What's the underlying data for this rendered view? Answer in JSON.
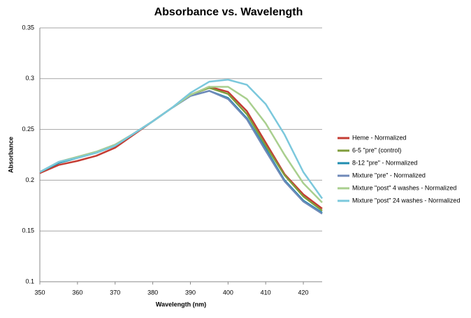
{
  "chart_data": {
    "type": "line",
    "title": "Absorbance vs. Wavelength",
    "x_label": "Wavelength (nm)",
    "y_label": "Absorbance",
    "x": [
      350,
      355,
      360,
      365,
      370,
      375,
      380,
      385,
      390,
      395,
      400,
      405,
      410,
      415,
      420,
      425
    ],
    "series": [
      {
        "name": "Heme - Normalized",
        "color": "#c43c33",
        "values": [
          0.207,
          0.215,
          0.219,
          0.224,
          0.232,
          0.245,
          0.258,
          0.271,
          0.284,
          0.292,
          0.287,
          0.268,
          0.237,
          0.206,
          0.186,
          0.172
        ]
      },
      {
        "name": "6-5 \"pre\" (control)",
        "color": "#7f9c3b",
        "values": [
          0.208,
          0.217,
          0.222,
          0.227,
          0.234,
          0.246,
          0.258,
          0.271,
          0.284,
          0.291,
          0.285,
          0.265,
          0.234,
          0.205,
          0.184,
          0.17
        ]
      },
      {
        "name": "8-12 \"pre\" - Normalized",
        "color": "#1f8db0",
        "values": [
          0.208,
          0.217,
          0.222,
          0.227,
          0.234,
          0.246,
          0.258,
          0.271,
          0.283,
          0.288,
          0.281,
          0.261,
          0.231,
          0.2,
          0.18,
          0.168
        ]
      },
      {
        "name": "Mixture \"pre\" - Normalized",
        "color": "#6f89b8",
        "values": [
          0.208,
          0.218,
          0.223,
          0.228,
          0.235,
          0.246,
          0.258,
          0.271,
          0.283,
          0.288,
          0.28,
          0.26,
          0.229,
          0.199,
          0.179,
          0.167
        ]
      },
      {
        "name": "Mixture \"post\" 4 washes - Normalized",
        "color": "#a9cf8e",
        "values": [
          0.208,
          0.218,
          0.223,
          0.228,
          0.235,
          0.246,
          0.258,
          0.271,
          0.284,
          0.292,
          0.292,
          0.28,
          0.256,
          0.225,
          0.197,
          0.178
        ]
      },
      {
        "name": "Mixture \"post\" 24 washes - Normalized",
        "color": "#7bc8dc",
        "values": [
          0.208,
          0.218,
          0.222,
          0.227,
          0.234,
          0.246,
          0.258,
          0.271,
          0.286,
          0.297,
          0.299,
          0.294,
          0.275,
          0.245,
          0.208,
          0.182
        ]
      }
    ],
    "xlim": [
      350,
      425
    ],
    "xticks": [
      350,
      360,
      370,
      380,
      390,
      400,
      410,
      420
    ],
    "ylim": [
      0.1,
      0.35
    ],
    "yticks": [
      0.1,
      0.15,
      0.2,
      0.25,
      0.3,
      0.35
    ],
    "grid": true,
    "legend": "right"
  }
}
